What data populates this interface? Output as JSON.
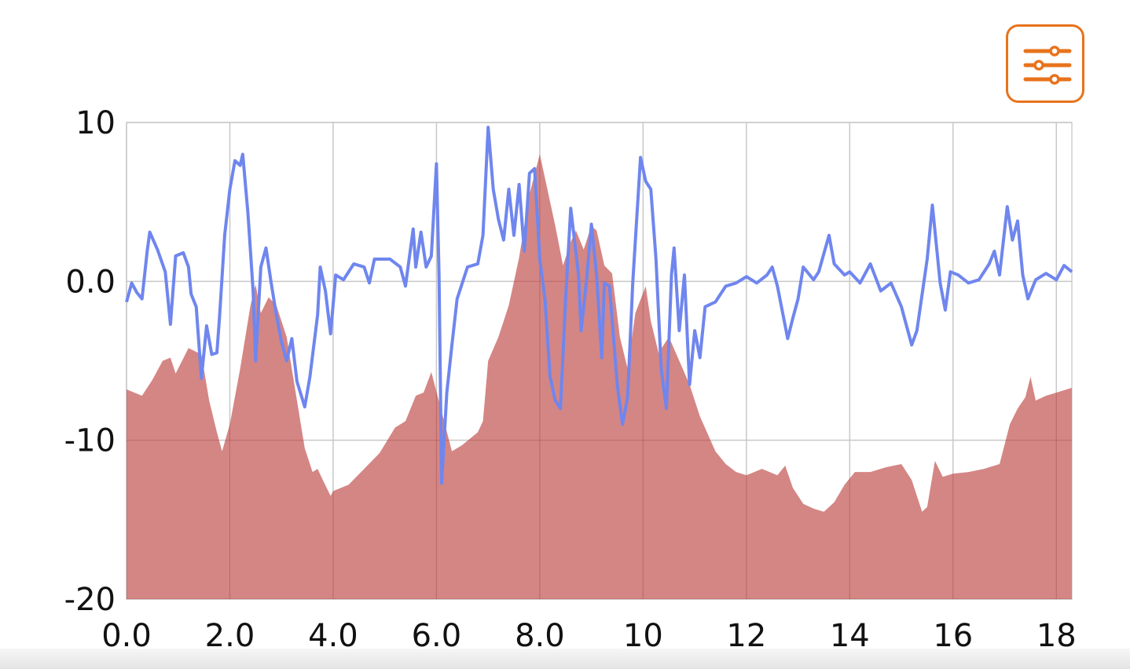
{
  "toolbar": {
    "settings_button_icon": "sliders-icon",
    "accent_color": "#e8731c"
  },
  "chart_data": {
    "type": "line",
    "title": "",
    "xlabel": "",
    "ylabel": "",
    "xlim": [
      0,
      18.3
    ],
    "ylim": [
      -20,
      10
    ],
    "grid": true,
    "legend": "none",
    "x_ticks": [
      "0.0",
      "2.0",
      "4.0",
      "6.0",
      "8.0",
      "10",
      "12",
      "14",
      "16",
      "18"
    ],
    "x_tick_values": [
      0,
      2,
      4,
      6,
      8,
      10,
      12,
      14,
      16,
      18
    ],
    "y_ticks": [
      "10",
      "0.0",
      "-10",
      "-20"
    ],
    "y_tick_values": [
      10,
      0,
      -10,
      -20
    ],
    "series": [
      {
        "name": "area",
        "type": "area",
        "color": "#d48684",
        "x": [
          0.0,
          0.3,
          0.5,
          0.7,
          0.85,
          0.95,
          1.2,
          1.45,
          1.6,
          1.75,
          1.85,
          2.0,
          2.2,
          2.4,
          2.5,
          2.6,
          2.75,
          2.9,
          3.1,
          3.3,
          3.45,
          3.6,
          3.7,
          3.8,
          3.95,
          4.0,
          4.3,
          4.6,
          4.9,
          5.2,
          5.4,
          5.6,
          5.75,
          5.9,
          6.1,
          6.3,
          6.5,
          6.8,
          6.9,
          7.0,
          7.2,
          7.4,
          7.6,
          7.8,
          8.0,
          8.1,
          8.3,
          8.45,
          8.6,
          8.7,
          8.85,
          9.0,
          9.1,
          9.25,
          9.4,
          9.55,
          9.7,
          9.85,
          10.05,
          10.15,
          10.3,
          10.5,
          10.7,
          10.9,
          11.1,
          11.4,
          11.6,
          11.8,
          12.0,
          12.3,
          12.6,
          12.75,
          12.9,
          13.1,
          13.3,
          13.5,
          13.7,
          13.9,
          14.1,
          14.4,
          14.7,
          15.0,
          15.2,
          15.4,
          15.5,
          15.65,
          15.8,
          16.0,
          16.3,
          16.6,
          16.9,
          17.1,
          17.25,
          17.4,
          17.5,
          17.6,
          17.8,
          18.0,
          18.3
        ],
        "values": [
          -6.8,
          -7.2,
          -6.2,
          -5.0,
          -4.8,
          -5.8,
          -4.2,
          -4.6,
          -7.5,
          -9.5,
          -10.7,
          -9.0,
          -5.5,
          -1.5,
          -0.2,
          -2.0,
          -1.0,
          -1.5,
          -3.5,
          -7.5,
          -10.5,
          -12.0,
          -11.8,
          -12.5,
          -13.5,
          -13.2,
          -12.8,
          -11.8,
          -10.8,
          -9.2,
          -8.8,
          -7.2,
          -7.0,
          -5.7,
          -8.2,
          -10.7,
          -10.3,
          -9.5,
          -8.8,
          -5.0,
          -3.5,
          -1.5,
          1.5,
          5.5,
          8.0,
          6.5,
          3.5,
          1.0,
          2.5,
          3.2,
          2.0,
          3.5,
          3.2,
          1.0,
          0.5,
          -3.5,
          -5.5,
          -2.0,
          -0.3,
          -2.5,
          -4.5,
          -3.5,
          -5.0,
          -6.5,
          -8.5,
          -10.7,
          -11.5,
          -12.0,
          -12.2,
          -11.8,
          -12.2,
          -11.6,
          -13.0,
          -14.0,
          -14.3,
          -14.5,
          -13.9,
          -12.8,
          -12.0,
          -12.0,
          -11.7,
          -11.5,
          -12.5,
          -14.5,
          -14.2,
          -11.3,
          -12.3,
          -12.1,
          -12.0,
          -11.8,
          -11.5,
          -9.0,
          -8.0,
          -7.3,
          -6.0,
          -7.5,
          -7.2,
          -7.0,
          -6.7
        ]
      },
      {
        "name": "line",
        "type": "line",
        "color": "#6f86ee",
        "x": [
          0.0,
          0.1,
          0.2,
          0.3,
          0.4,
          0.45,
          0.6,
          0.75,
          0.85,
          0.95,
          1.1,
          1.2,
          1.25,
          1.35,
          1.45,
          1.55,
          1.65,
          1.75,
          1.8,
          1.9,
          2.0,
          2.1,
          2.2,
          2.25,
          2.35,
          2.45,
          2.5,
          2.6,
          2.7,
          2.8,
          2.9,
          3.0,
          3.1,
          3.2,
          3.3,
          3.45,
          3.55,
          3.7,
          3.75,
          3.85,
          3.95,
          4.05,
          4.2,
          4.4,
          4.6,
          4.7,
          4.8,
          5.1,
          5.3,
          5.4,
          5.55,
          5.6,
          5.7,
          5.8,
          5.9,
          6.0,
          6.05,
          6.1,
          6.2,
          6.3,
          6.4,
          6.6,
          6.8,
          6.9,
          7.0,
          7.1,
          7.2,
          7.3,
          7.4,
          7.5,
          7.6,
          7.7,
          7.8,
          7.9,
          8.0,
          8.1,
          8.2,
          8.3,
          8.4,
          8.5,
          8.6,
          8.75,
          8.8,
          8.9,
          9.0,
          9.1,
          9.2,
          9.25,
          9.35,
          9.5,
          9.6,
          9.7,
          9.8,
          9.95,
          10.05,
          10.15,
          10.25,
          10.35,
          10.45,
          10.55,
          10.6,
          10.7,
          10.8,
          10.9,
          11.0,
          11.1,
          11.2,
          11.4,
          11.6,
          11.8,
          12.0,
          12.2,
          12.4,
          12.5,
          12.6,
          12.8,
          12.9,
          13.0,
          13.1,
          13.3,
          13.4,
          13.6,
          13.7,
          13.9,
          14.0,
          14.2,
          14.4,
          14.6,
          14.8,
          15.0,
          15.2,
          15.3,
          15.5,
          15.6,
          15.75,
          15.85,
          15.95,
          16.1,
          16.3,
          16.5,
          16.7,
          16.8,
          16.9,
          17.05,
          17.15,
          17.25,
          17.35,
          17.45,
          17.6,
          17.8,
          18.0,
          18.15,
          18.3
        ],
        "values": [
          -1.3,
          -0.1,
          -0.7,
          -1.1,
          1.9,
          3.1,
          2.0,
          0.6,
          -2.7,
          1.6,
          1.8,
          0.9,
          -0.8,
          -1.6,
          -6.1,
          -2.8,
          -4.6,
          -4.5,
          -2.3,
          2.9,
          5.8,
          7.6,
          7.3,
          8.0,
          4.3,
          -0.6,
          -5.0,
          0.9,
          2.1,
          -0.1,
          -2.1,
          -3.8,
          -5.0,
          -3.6,
          -6.3,
          -7.9,
          -6.0,
          -2.1,
          0.9,
          -0.6,
          -3.3,
          0.4,
          0.1,
          1.1,
          0.9,
          -0.1,
          1.4,
          1.4,
          0.9,
          -0.3,
          3.3,
          0.9,
          3.1,
          0.9,
          1.6,
          7.4,
          0.4,
          -12.7,
          -7.0,
          -4.0,
          -1.1,
          0.9,
          1.1,
          2.9,
          9.7,
          5.8,
          3.9,
          2.6,
          5.8,
          2.9,
          6.1,
          1.9,
          6.8,
          7.1,
          1.4,
          -1.1,
          -6.0,
          -7.5,
          -8.0,
          -1.1,
          4.6,
          0.4,
          -3.1,
          -0.1,
          3.6,
          0.4,
          -4.8,
          -0.1,
          -0.3,
          -6.5,
          -9.0,
          -7.3,
          -0.1,
          7.8,
          6.3,
          5.8,
          1.4,
          -5.5,
          -8.0,
          0.4,
          2.1,
          -3.1,
          0.4,
          -6.5,
          -3.1,
          -4.8,
          -1.6,
          -1.3,
          -0.3,
          -0.1,
          0.3,
          -0.1,
          0.4,
          0.9,
          -0.3,
          -3.6,
          -2.3,
          -1.1,
          0.9,
          0.1,
          0.6,
          2.9,
          1.1,
          0.4,
          0.6,
          -0.1,
          1.1,
          -0.6,
          -0.1,
          -1.6,
          -4.0,
          -3.1,
          1.4,
          4.8,
          -0.1,
          -1.8,
          0.6,
          0.4,
          -0.1,
          0.1,
          1.1,
          1.9,
          0.4,
          4.7,
          2.6,
          3.8,
          0.4,
          -1.1,
          0.1,
          0.5,
          0.1,
          1.0,
          0.6
        ]
      }
    ]
  }
}
